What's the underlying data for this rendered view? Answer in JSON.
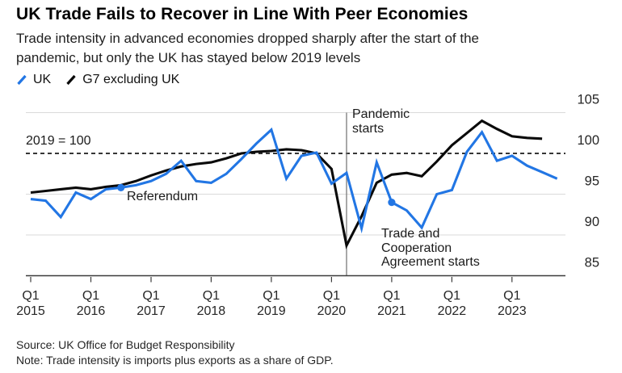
{
  "chart_data": {
    "type": "line",
    "title": "UK Trade Fails to Recover in Line With Peer Economies",
    "subtitle_lines": [
      "Trade intensity in advanced economies dropped sharply after the start of the",
      "pandemic, but only the UK has stayed below 2019 levels"
    ],
    "x": [
      "Q1 2015",
      "Q2 2015",
      "Q3 2015",
      "Q4 2015",
      "Q1 2016",
      "Q2 2016",
      "Q3 2016",
      "Q4 2016",
      "Q1 2017",
      "Q2 2017",
      "Q3 2017",
      "Q4 2017",
      "Q1 2018",
      "Q2 2018",
      "Q3 2018",
      "Q4 2018",
      "Q1 2019",
      "Q2 2019",
      "Q3 2019",
      "Q4 2019",
      "Q1 2020",
      "Q2 2020",
      "Q3 2020",
      "Q4 2020",
      "Q1 2021",
      "Q2 2021",
      "Q3 2021",
      "Q4 2021",
      "Q1 2022",
      "Q2 2022",
      "Q3 2022",
      "Q4 2022",
      "Q1 2023",
      "Q2 2023",
      "Q3 2023",
      "Q4 2023"
    ],
    "x_axis": {
      "tick_labels": [
        {
          "quarter": "Q1",
          "year": "2015"
        },
        {
          "quarter": "Q1",
          "year": "2016"
        },
        {
          "quarter": "Q1",
          "year": "2017"
        },
        {
          "quarter": "Q1",
          "year": "2018"
        },
        {
          "quarter": "Q1",
          "year": "2019"
        },
        {
          "quarter": "Q1",
          "year": "2020"
        },
        {
          "quarter": "Q1",
          "year": "2021"
        },
        {
          "quarter": "Q1",
          "year": "2022"
        },
        {
          "quarter": "Q1",
          "year": "2023"
        }
      ]
    },
    "y_axis": {
      "min": 85,
      "max": 105,
      "ticks": [
        105,
        100,
        95,
        90,
        85
      ],
      "gridlines": [
        105,
        95,
        90
      ],
      "side": "right",
      "grid": "on"
    },
    "reference_line": {
      "value": 100,
      "label": "2019 = 100",
      "style": "dashed"
    },
    "event_line": {
      "label": "Pandemic starts",
      "quarter": "Q2 2020",
      "quarter_index": 21
    },
    "series": [
      {
        "name": "UK",
        "color": "#2276e4",
        "values": [
          94.4,
          94.2,
          92.2,
          95.2,
          94.4,
          95.6,
          95.8,
          96.1,
          96.6,
          97.5,
          99.1,
          96.6,
          96.4,
          97.5,
          99.3,
          101.2,
          102.9,
          96.9,
          99.7,
          100.1,
          96.3,
          97.6,
          90.8,
          98.9,
          94.0,
          93.0,
          90.9,
          95.0,
          95.5,
          100.2,
          102.6,
          99.1,
          99.7,
          98.5,
          97.7,
          96.9
        ]
      },
      {
        "name": "G7 excluding UK",
        "color": "#0a0a0a",
        "values": [
          95.2,
          95.4,
          95.6,
          95.8,
          95.6,
          95.9,
          96.1,
          96.6,
          97.3,
          97.9,
          98.4,
          98.7,
          98.9,
          99.4,
          100.0,
          100.2,
          100.3,
          100.5,
          100.4,
          100.0,
          98.1,
          88.7,
          92.3,
          96.4,
          97.4,
          97.6,
          97.2,
          99.0,
          101.0,
          102.5,
          104.0,
          103.0,
          102.1,
          101.9,
          101.8
        ]
      }
    ],
    "markers": [
      {
        "series": "UK",
        "quarter": "Q3 2016",
        "quarter_index": 6,
        "label": "Referendum"
      },
      {
        "series": "UK",
        "quarter": "Q1 2021",
        "quarter_index": 24,
        "label": "Trade and Cooperation Agreement starts"
      }
    ]
  },
  "footer": {
    "source": "Source: UK Office for Budget Responsibility",
    "note": "Note: Trade intensity is imports plus exports as a share of GDP."
  }
}
